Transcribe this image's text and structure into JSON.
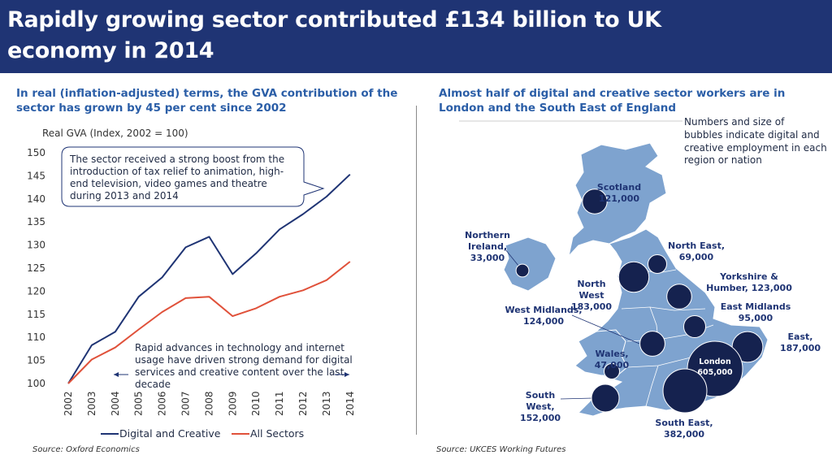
{
  "header": {
    "title_line1": "Rapidly growing sector contributed £134 billion to UK",
    "title_line2": "economy in 2014"
  },
  "left_panel": {
    "subtitle_line1": "In real (inflation-adjusted) terms, the GVA contribution of the",
    "subtitle_line2": "sector has grown by 45 per cent since 2002",
    "source": "Source: Oxford Economics"
  },
  "right_panel": {
    "subtitle_line1": "Almost half of digital and creative sector workers are in",
    "subtitle_line2": "London and the South East of England",
    "source": "Source: UKCES Working Futures",
    "note_lines": [
      "Numbers and size of",
      "bubbles indicate digital and",
      "creative employment in each",
      "region or nation"
    ]
  },
  "chart_data": [
    {
      "type": "line",
      "ylabel": "Real GVA (Index, 2002 = 100)",
      "ylim": [
        100,
        150
      ],
      "yticks": [
        "100",
        "105",
        "110",
        "115",
        "120",
        "125",
        "130",
        "135",
        "140",
        "145",
        "150"
      ],
      "categories": [
        "2002",
        "2003",
        "2004",
        "2005",
        "2006",
        "2007",
        "2008",
        "2009",
        "2010",
        "2011",
        "2012",
        "2013",
        "2014"
      ],
      "series": [
        {
          "name": "Digital and Creative",
          "color": "#1f3474",
          "values": [
            100,
            108.3,
            111.2,
            118.8,
            123.0,
            129.5,
            131.8,
            123.7,
            128.2,
            133.4,
            136.7,
            140.5,
            145.3
          ]
        },
        {
          "name": "All Sectors",
          "color": "#e0513a",
          "values": [
            100,
            105.2,
            107.8,
            111.7,
            115.5,
            118.5,
            118.8,
            114.6,
            116.3,
            118.8,
            120.2,
            122.4,
            126.4
          ]
        }
      ],
      "annotations": {
        "callout_lines": [
          "The sector received a strong boost from the",
          "introduction of tax relief to animation, high-",
          "end television, video games and theatre",
          "during 2013 and 2014"
        ],
        "bottom_lines": [
          "Rapid advances in technology and internet",
          "usage have driven strong demand for digital",
          "services and creative content over the last",
          "decade"
        ]
      },
      "legend_position": "bottom"
    },
    {
      "type": "bubble-map",
      "regions": [
        {
          "name": "Scotland",
          "value": "121,000",
          "employment": 121000
        },
        {
          "name": "Northern Ireland",
          "value": "33,000",
          "employment": 33000
        },
        {
          "name": "North East",
          "value": "69,000",
          "employment": 69000
        },
        {
          "name": "North West",
          "value": "183,000",
          "employment": 183000
        },
        {
          "name": "Yorkshire & Humber",
          "value": "123,000",
          "employment": 123000
        },
        {
          "name": "West Midlands",
          "value": "124,000",
          "employment": 124000
        },
        {
          "name": "East Midlands",
          "value": "95,000",
          "employment": 95000
        },
        {
          "name": "Wales",
          "value": "47,000",
          "employment": 47000
        },
        {
          "name": "East",
          "value": "187,000",
          "employment": 187000
        },
        {
          "name": "London",
          "value": "605,000",
          "employment": 605000
        },
        {
          "name": "South West",
          "value": "152,000",
          "employment": 152000
        },
        {
          "name": "South East",
          "value": "382,000",
          "employment": 382000
        }
      ],
      "colors": {
        "land": "#7ea3cf",
        "bubble": "#15224f"
      }
    }
  ]
}
